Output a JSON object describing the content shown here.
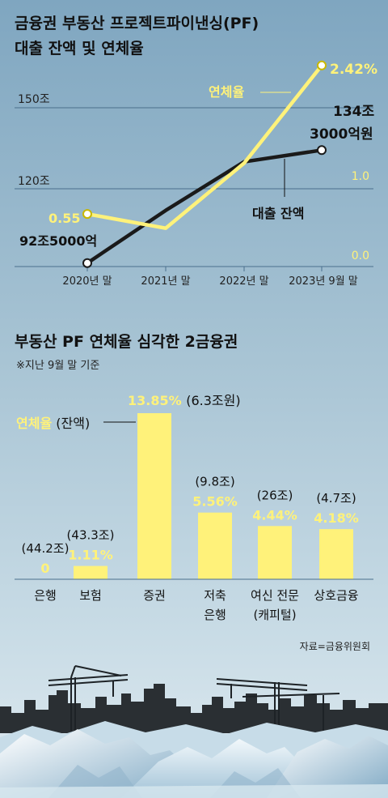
{
  "chart_data": [
    {
      "type": "line",
      "title": "금융권 부동산 프로젝트파이낸싱(PF)",
      "subtitle": "대출 잔액 및 연체율",
      "categories": [
        "2020년 말",
        "2021년 말",
        "2022년 말",
        "2023년 9월 말"
      ],
      "left_ticks": [
        "150조",
        "120조"
      ],
      "right_ticks": [
        "1.0",
        "0.0"
      ],
      "series": [
        {
          "name": "연체율",
          "color": "#fff27a",
          "values": [
            0.55,
            0.37,
            1.19,
            2.42
          ],
          "axis": "right",
          "labels": {
            "start": "0.55",
            "end": "2.42%"
          }
        },
        {
          "name": "대출 잔액",
          "color": "#1a1a1a",
          "values": [
            92.5,
            112.0,
            130.0,
            134.3
          ],
          "axis": "left",
          "labels": {
            "start": "92조5000억",
            "end_line1": "134조",
            "end_line2": "3000억원"
          }
        }
      ]
    },
    {
      "type": "bar",
      "title": "부동산 PF 연체율 심각한 2금융권",
      "note": "※지난 9월 말 기준",
      "legend": {
        "main": "연체율",
        "sub": "(잔액)"
      },
      "color": "#fff27a",
      "categories": [
        {
          "lines": [
            "은행"
          ],
          "rate": 0,
          "rate_label": "0",
          "balance": "(44.2조)"
        },
        {
          "lines": [
            "보험"
          ],
          "rate": 1.11,
          "rate_label": "1.11%",
          "balance": "(43.3조)"
        },
        {
          "lines": [
            "증권"
          ],
          "rate": 13.85,
          "rate_label": "13.85%",
          "balance": "(6.3조원)"
        },
        {
          "lines": [
            "저축",
            "은행"
          ],
          "rate": 5.56,
          "rate_label": "5.56%",
          "balance": "(9.8조)"
        },
        {
          "lines": [
            "여신 전문",
            "(캐피털)"
          ],
          "rate": 4.44,
          "rate_label": "4.44%",
          "balance": "(26조)"
        },
        {
          "lines": [
            "상호금융"
          ],
          "rate": 4.18,
          "rate_label": "4.18%",
          "balance": "(4.7조)"
        }
      ]
    }
  ],
  "source": "자료=금융위원회"
}
